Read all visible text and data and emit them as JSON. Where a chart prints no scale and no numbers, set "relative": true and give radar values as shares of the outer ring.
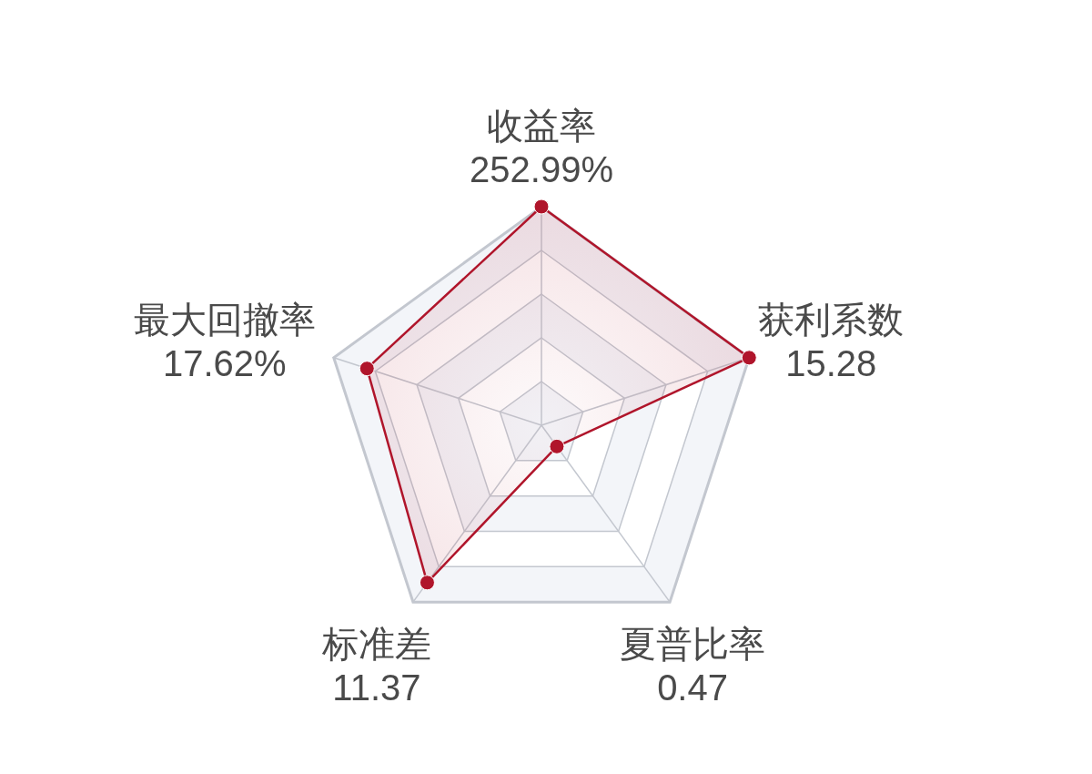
{
  "chart_data": {
    "type": "radar",
    "relative": true,
    "grid": true,
    "marker": "circle",
    "line_style": "solid",
    "categories": [
      "收益率",
      "获利系数",
      "夏普比率",
      "标准差",
      "最大回撤率"
    ],
    "annotations": [
      "252.99%",
      "15.28",
      "0.47",
      "11.37",
      "17.62%"
    ],
    "series": [
      {
        "color": "#b0152b",
        "values": [
          1.0,
          1.0,
          0.12,
          0.89,
          0.84
        ]
      }
    ]
  }
}
